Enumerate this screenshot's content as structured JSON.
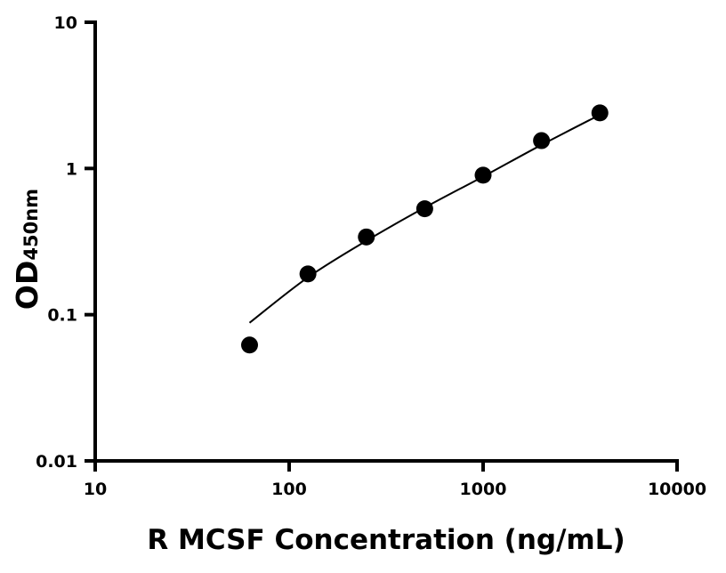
{
  "chart_data": {
    "type": "scatter",
    "title": "",
    "xlabel": "R MCSF Concentration (ng/mL)",
    "ylabel_main": "OD",
    "ylabel_sub": "450nm",
    "xscale": "log",
    "yscale": "log",
    "xlim": [
      10,
      10000
    ],
    "ylim": [
      0.01,
      10
    ],
    "xticks": [
      10,
      100,
      1000,
      10000
    ],
    "xtick_labels": [
      "10",
      "100",
      "1000",
      "10000"
    ],
    "yticks": [
      0.01,
      0.1,
      1,
      10
    ],
    "ytick_labels": [
      "0.01",
      "0.1",
      "1",
      "10"
    ],
    "grid": false,
    "legend": "none",
    "marker_color": "#000000",
    "points": {
      "x": [
        62.5,
        125,
        250,
        500,
        1000,
        2000,
        4000
      ],
      "y": [
        0.062,
        0.19,
        0.34,
        0.53,
        0.9,
        1.55,
        2.4
      ]
    },
    "fit_curve": {
      "x": [
        62.5,
        125,
        250,
        500,
        1000,
        2000,
        4000
      ],
      "y": [
        0.088,
        0.18,
        0.32,
        0.54,
        0.88,
        1.45,
        2.33
      ]
    }
  }
}
